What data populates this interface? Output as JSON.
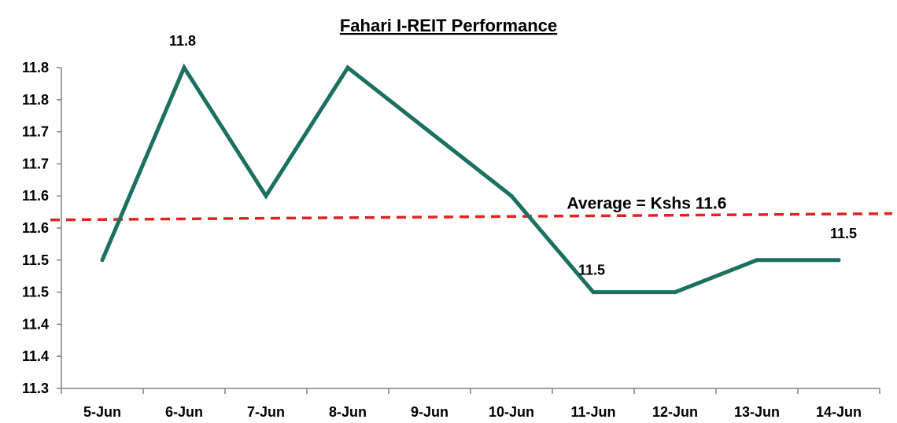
{
  "chart_data": {
    "type": "line",
    "title": "Fahari I-REIT Performance",
    "categories": [
      "5-Jun",
      "6-Jun",
      "7-Jun",
      "8-Jun",
      "9-Jun",
      "10-Jun",
      "11-Jun",
      "12-Jun",
      "13-Jun",
      "14-Jun"
    ],
    "series": [
      {
        "values": [
          11.5,
          11.8,
          11.6,
          11.8,
          11.7,
          11.6,
          11.45,
          11.45,
          11.5,
          11.5
        ]
      }
    ],
    "y_ticks": [
      "11.3",
      "11.4",
      "11.4",
      "11.5",
      "11.5",
      "11.6",
      "11.6",
      "11.7",
      "11.7",
      "11.8",
      "11.8"
    ],
    "ylim": [
      11.3,
      11.8
    ],
    "grid": false,
    "data_labels": [
      {
        "index": 1,
        "text": "11.8"
      },
      {
        "index": 6,
        "text": "11.5"
      },
      {
        "index": 9,
        "text": "11.5"
      }
    ],
    "average": {
      "value": 11.57,
      "label": "Average = Kshs 11.6"
    },
    "colors": {
      "line": "#1b7060",
      "average": "#e02424",
      "axis": "#808080"
    }
  }
}
